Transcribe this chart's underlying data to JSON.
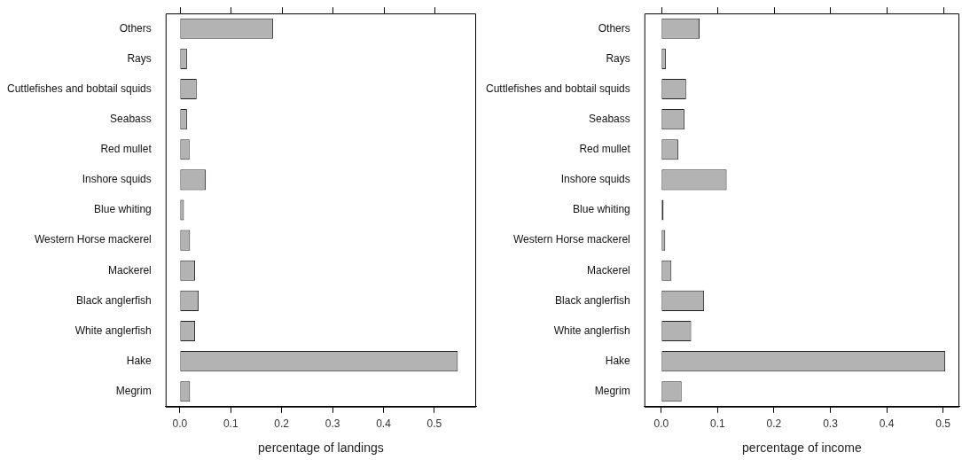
{
  "chart_data": [
    {
      "type": "bar",
      "orientation": "horizontal",
      "xlabel": "percentage of landings",
      "categories": [
        "Others",
        "Rays",
        "Cuttlefishes and bobtail squids",
        "Seabass",
        "Red mullet",
        "Inshore squids",
        "Blue whiting",
        "Western Horse mackerel",
        "Mackerel",
        "Black anglerfish",
        "White anglerfish",
        "Hake",
        "Megrim"
      ],
      "values": [
        0.183,
        0.014,
        0.033,
        0.014,
        0.019,
        0.051,
        0.008,
        0.02,
        0.03,
        0.037,
        0.03,
        0.546,
        0.02
      ],
      "color": "#b3b3b3",
      "xlim": [
        -0.028,
        0.582
      ],
      "xticks": [
        {
          "value": 0,
          "label": "0.0"
        },
        0.1,
        0.2,
        0.3,
        0.4,
        0.5
      ],
      "grid": false,
      "legend": false
    },
    {
      "type": "bar",
      "orientation": "horizontal",
      "xlabel": "percentage of income",
      "categories": [
        "Others",
        "Rays",
        "Cuttlefishes and bobtail squids",
        "Seabass",
        "Red mullet",
        "Inshore squids",
        "Blue whiting",
        "Western Horse mackerel",
        "Mackerel",
        "Black anglerfish",
        "White anglerfish",
        "Hake",
        "Megrim"
      ],
      "values": [
        0.068,
        0.008,
        0.044,
        0.041,
        0.03,
        0.116,
        0.004,
        0.007,
        0.018,
        0.076,
        0.053,
        0.504,
        0.036
      ],
      "color": "#b3b3b3",
      "xlim": [
        -0.03,
        0.529
      ],
      "xticks": [
        {
          "value": 0,
          "label": "0.0"
        },
        0.1,
        0.2,
        0.3,
        0.4,
        0.5
      ],
      "grid": false,
      "legend": false
    }
  ]
}
